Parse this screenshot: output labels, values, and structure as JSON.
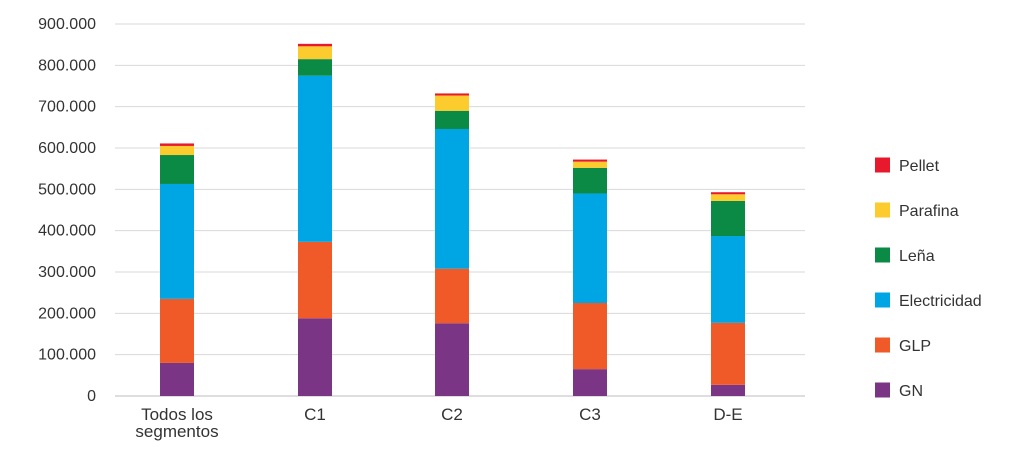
{
  "chart_data": {
    "type": "bar",
    "stacked": true,
    "title": "",
    "xlabel": "",
    "ylabel": "",
    "ylim": [
      0,
      900000
    ],
    "yticks": [
      0,
      100000,
      200000,
      300000,
      400000,
      500000,
      600000,
      700000,
      800000,
      900000
    ],
    "ytick_labels": [
      "0",
      "100.000",
      "200.000",
      "300.000",
      "400.000",
      "500.000",
      "600.000",
      "700.000",
      "800.000",
      "900.000"
    ],
    "grid": true,
    "legend_position": "right",
    "categories": [
      [
        "Todos los",
        "segmentos"
      ],
      [
        "C1"
      ],
      [
        "C2"
      ],
      [
        "C3"
      ],
      [
        "D-E"
      ]
    ],
    "series": [
      {
        "name": "GN",
        "color": "#7B3585",
        "values": [
          80000,
          188000,
          176000,
          65000,
          27000
        ]
      },
      {
        "name": "GLP",
        "color": "#F05A28",
        "values": [
          155000,
          185000,
          132000,
          160000,
          150000
        ]
      },
      {
        "name": "Electricidad",
        "color": "#00A5E3",
        "values": [
          278000,
          402000,
          338000,
          265000,
          210000
        ]
      },
      {
        "name": "Leña",
        "color": "#0A8A45",
        "values": [
          70000,
          40000,
          44000,
          62000,
          85000
        ]
      },
      {
        "name": "Parafina",
        "color": "#FCCB2D",
        "values": [
          22000,
          31000,
          37000,
          15000,
          16000
        ]
      },
      {
        "name": "Pellet",
        "color": "#E8192C",
        "values": [
          6000,
          6000,
          5000,
          5000,
          5000
        ]
      }
    ]
  }
}
